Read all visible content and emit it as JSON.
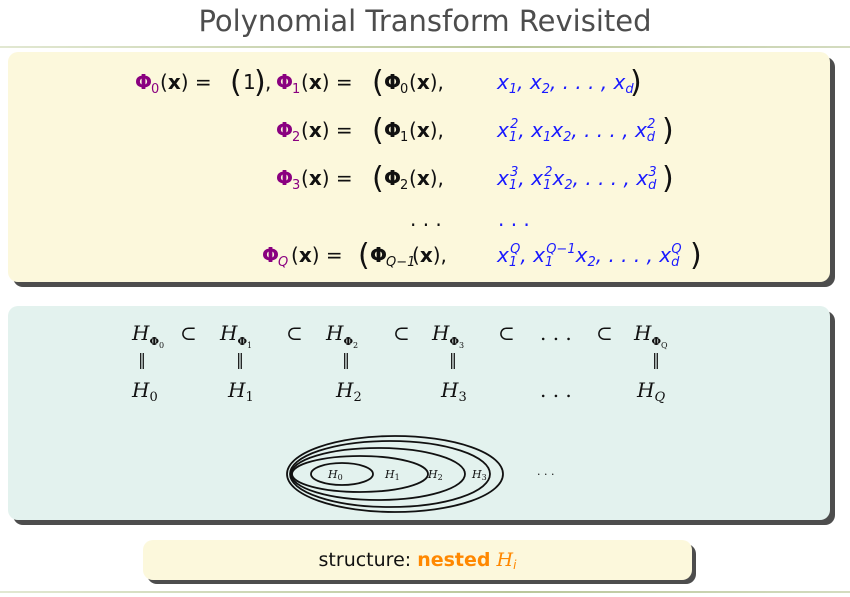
{
  "slide": {
    "title": "Polynomial Transform Revisited",
    "colors": {
      "phi": "#8a0080",
      "phi_sub": "#8a0080",
      "poly": "#1a1aff",
      "accent": "#ff8800",
      "title": "#4d4d4d",
      "yellow_box": "#fcf8dc",
      "teal_box": "#e3f2ee"
    }
  },
  "equations": [
    {
      "lhs_phi": "Φ",
      "lhs_sub": "0",
      "lhs_arg": "(x) = (1),",
      "mid_phi": "Φ",
      "mid_sub": "1",
      "mid_arg": "(x) = (",
      "inner_phi": "Φ",
      "inner_sub": "0",
      "inner_arg": "(x),",
      "poly": "x1, x2, . . . , xd"
    },
    {
      "lhs_phi": "Φ",
      "lhs_sub": "2",
      "inner_phi": "Φ",
      "inner_sub": "1",
      "poly": "x1², x1x2, . . . , xd²"
    },
    {
      "lhs_phi": "Φ",
      "lhs_sub": "3",
      "inner_phi": "Φ",
      "inner_sub": "2",
      "poly": "x1³, x1²x2, . . . , xd³"
    },
    {
      "ellipsis_left": ". . .",
      "ellipsis_right": ". . ."
    },
    {
      "lhs_phi": "Φ",
      "lhs_sub": "Q",
      "inner_phi": "Φ",
      "inner_sub": "Q−1",
      "poly": "x1^Q, x1^(Q−1)x2, . . . , xd^Q"
    }
  ],
  "hierarchy": {
    "top_row": [
      "H_Φ0",
      "⊂",
      "H_Φ1",
      "⊂",
      "H_Φ2",
      "⊂",
      "H_Φ3",
      "⊂",
      ". . .",
      "⊂",
      "H_ΦQ"
    ],
    "bottom_row": [
      "H0",
      "H1",
      "H2",
      "H3",
      ". . .",
      "HQ"
    ],
    "equal_sign": "‖"
  },
  "nested_diagram": {
    "labels": [
      "H0",
      "H1",
      "H2",
      "H3"
    ],
    "trailing": "· · ·"
  },
  "result": {
    "prefix": "structure:",
    "highlight": "nested",
    "symbol": "H",
    "subscript": "i"
  }
}
